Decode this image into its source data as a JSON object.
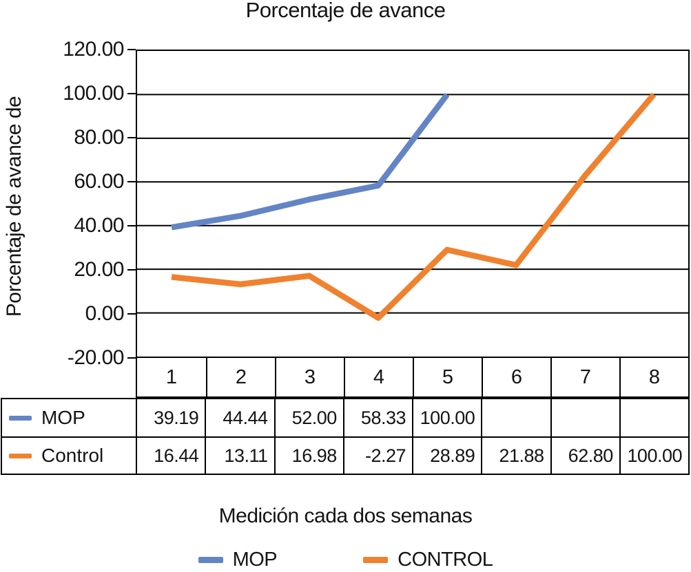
{
  "title": "Porcentaje de avance",
  "y_axis": {
    "title": "Porcentaje de avance de",
    "ticks": [
      "120.00",
      "100.00",
      "80.00",
      "60.00",
      "40.00",
      "20.00",
      "0.00",
      "-20.00"
    ]
  },
  "x_axis": {
    "title": "Medición cada dos semanas",
    "categories": [
      "1",
      "2",
      "3",
      "4",
      "5",
      "6",
      "7",
      "8"
    ]
  },
  "chart_data": {
    "type": "line",
    "categories": [
      1,
      2,
      3,
      4,
      5,
      6,
      7,
      8
    ],
    "series": [
      {
        "name": "MOP",
        "table_label": "MOP",
        "legend_label": "MOP",
        "color": "#6385C6",
        "values": [
          39.19,
          44.44,
          52.0,
          58.33,
          100.0,
          null,
          null,
          null
        ],
        "display": [
          "39.19",
          "44.44",
          "52.00",
          "58.33",
          "100.00",
          "",
          "",
          ""
        ]
      },
      {
        "name": "CONTROL",
        "table_label": "Control",
        "legend_label": "CONTROL",
        "color": "#F0812F",
        "values": [
          16.44,
          13.11,
          16.98,
          -2.27,
          28.89,
          21.88,
          62.8,
          100.0
        ],
        "display": [
          "16.44",
          "13.11",
          "16.98",
          "-2.27",
          "28.89",
          "21.88",
          "62.80",
          "100.00"
        ]
      }
    ],
    "title": "Porcentaje de avance",
    "xlabel": "Medición cada dos semanas",
    "ylabel": "Porcentaje de avance de",
    "ylim": [
      -20,
      120
    ],
    "ytick_step": 20,
    "grid": "horizontal",
    "legend_position": "bottom",
    "gridline_color": "#000000",
    "line_width": 8.5
  }
}
